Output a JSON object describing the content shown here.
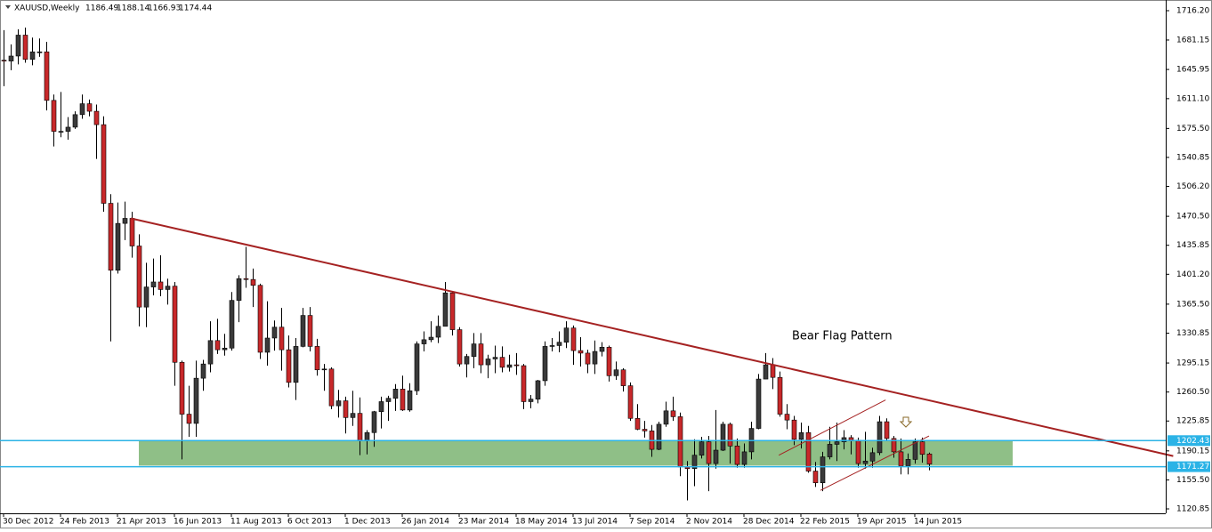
{
  "chart_data": {
    "type": "candlestick",
    "symbol": "XAUUSD,Weekly",
    "annotation": "Bear Flag Pattern",
    "bull_color": "#3a3a3a",
    "bear_color": "#c8282a",
    "categories": [
      "30 Dec 2012",
      null,
      null,
      null,
      null,
      null,
      null,
      null,
      "24 Feb 2013",
      null,
      null,
      null,
      null,
      null,
      null,
      null,
      "21 Apr 2013",
      null,
      null,
      null,
      null,
      null,
      null,
      null,
      "16 Jun 2013",
      null,
      null,
      null,
      null,
      null,
      null,
      null,
      "11 Aug 2013",
      null,
      null,
      null,
      null,
      null,
      null,
      null,
      "6 Oct 2013",
      null,
      null,
      null,
      null,
      null,
      null,
      null,
      "1 Dec 2013",
      null,
      null,
      null,
      null,
      null,
      null,
      null,
      "26 Jan 2014",
      null,
      null,
      null,
      null,
      null,
      null,
      null,
      "23 Mar 2014",
      null,
      null,
      null,
      null,
      null,
      null,
      null,
      "18 May 2014",
      null,
      null,
      null,
      null,
      null,
      null,
      null,
      "13 Jul 2014",
      null,
      null,
      null,
      null,
      null,
      null,
      null,
      "7 Sep 2014",
      null,
      null,
      null,
      null,
      null,
      null,
      null,
      "2 Nov 2014",
      null,
      null,
      null,
      null,
      null,
      null,
      null,
      "28 Dec 2014",
      null,
      null,
      null,
      null,
      null,
      null,
      null,
      "22 Feb 2015",
      null,
      null,
      null,
      null,
      null,
      null,
      null,
      "19 Apr 2015",
      null,
      null,
      null,
      null,
      null,
      null,
      null,
      "14 Jun 2015",
      null,
      null
    ],
    "ohlc": [
      [
        1657,
        1693,
        1626,
        1656
      ],
      [
        1656,
        1676,
        1645,
        1662
      ],
      [
        1662,
        1694,
        1652,
        1687
      ],
      [
        1687,
        1696,
        1654,
        1658
      ],
      [
        1658,
        1684,
        1651,
        1667
      ],
      [
        1667,
        1683,
        1661,
        1667
      ],
      [
        1667,
        1679,
        1597,
        1609
      ],
      [
        1609,
        1616,
        1554,
        1572
      ],
      [
        1572,
        1619,
        1565,
        1572
      ],
      [
        1572,
        1589,
        1562,
        1577
      ],
      [
        1577,
        1596,
        1575,
        1592
      ],
      [
        1592,
        1616,
        1587,
        1605
      ],
      [
        1605,
        1610,
        1590,
        1596
      ],
      [
        1596,
        1604,
        1539,
        1580
      ],
      [
        1580,
        1590,
        1476,
        1486
      ],
      [
        1486,
        1497,
        1321,
        1406
      ],
      [
        1406,
        1487,
        1402,
        1462
      ],
      [
        1462,
        1488,
        1442,
        1468
      ],
      [
        1468,
        1476,
        1421,
        1435
      ],
      [
        1435,
        1449,
        1339,
        1362
      ],
      [
        1362,
        1415,
        1338,
        1386
      ],
      [
        1386,
        1420,
        1376,
        1392
      ],
      [
        1392,
        1424,
        1375,
        1383
      ],
      [
        1383,
        1396,
        1365,
        1387
      ],
      [
        1387,
        1392,
        1268,
        1296
      ],
      [
        1296,
        1298,
        1180,
        1234
      ],
      [
        1234,
        1268,
        1207,
        1223
      ],
      [
        1223,
        1298,
        1207,
        1277
      ],
      [
        1277,
        1299,
        1262,
        1294
      ],
      [
        1294,
        1345,
        1284,
        1322
      ],
      [
        1322,
        1348,
        1306,
        1311
      ],
      [
        1311,
        1330,
        1304,
        1313
      ],
      [
        1313,
        1380,
        1310,
        1370
      ],
      [
        1370,
        1400,
        1344,
        1396
      ],
      [
        1396,
        1434,
        1385,
        1395
      ],
      [
        1395,
        1408,
        1362,
        1388
      ],
      [
        1388,
        1390,
        1300,
        1308
      ],
      [
        1308,
        1369,
        1292,
        1325
      ],
      [
        1325,
        1346,
        1310,
        1338
      ],
      [
        1338,
        1361,
        1286,
        1311
      ],
      [
        1311,
        1328,
        1266,
        1272
      ],
      [
        1272,
        1325,
        1251,
        1315
      ],
      [
        1315,
        1361,
        1314,
        1352
      ],
      [
        1352,
        1362,
        1309,
        1315
      ],
      [
        1315,
        1324,
        1280,
        1287
      ],
      [
        1287,
        1294,
        1262,
        1288
      ],
      [
        1288,
        1290,
        1240,
        1244
      ],
      [
        1244,
        1263,
        1230,
        1250
      ],
      [
        1250,
        1255,
        1211,
        1230
      ],
      [
        1230,
        1262,
        1220,
        1235
      ],
      [
        1235,
        1254,
        1185,
        1203
      ],
      [
        1203,
        1215,
        1186,
        1212
      ],
      [
        1212,
        1238,
        1195,
        1237
      ],
      [
        1237,
        1255,
        1217,
        1249
      ],
      [
        1249,
        1256,
        1226,
        1253
      ],
      [
        1253,
        1270,
        1238,
        1264
      ],
      [
        1264,
        1280,
        1238,
        1239
      ],
      [
        1239,
        1271,
        1237,
        1262
      ],
      [
        1262,
        1321,
        1257,
        1318
      ],
      [
        1318,
        1333,
        1309,
        1323
      ],
      [
        1323,
        1345,
        1320,
        1326
      ],
      [
        1326,
        1352,
        1319,
        1339
      ],
      [
        1339,
        1392,
        1339,
        1379
      ],
      [
        1379,
        1381,
        1328,
        1335
      ],
      [
        1335,
        1338,
        1291,
        1294
      ],
      [
        1294,
        1306,
        1278,
        1303
      ],
      [
        1303,
        1331,
        1289,
        1318
      ],
      [
        1318,
        1331,
        1283,
        1293
      ],
      [
        1293,
        1305,
        1277,
        1300
      ],
      [
        1300,
        1316,
        1283,
        1302
      ],
      [
        1302,
        1315,
        1284,
        1290
      ],
      [
        1290,
        1305,
        1285,
        1293
      ],
      [
        1293,
        1307,
        1281,
        1292
      ],
      [
        1292,
        1294,
        1240,
        1249
      ],
      [
        1249,
        1257,
        1241,
        1252
      ],
      [
        1252,
        1275,
        1247,
        1274
      ],
      [
        1274,
        1321,
        1268,
        1315
      ],
      [
        1315,
        1325,
        1309,
        1316
      ],
      [
        1316,
        1333,
        1308,
        1320
      ],
      [
        1320,
        1345,
        1313,
        1337
      ],
      [
        1337,
        1340,
        1293,
        1310
      ],
      [
        1310,
        1326,
        1291,
        1307
      ],
      [
        1307,
        1311,
        1283,
        1294
      ],
      [
        1294,
        1322,
        1282,
        1309
      ],
      [
        1309,
        1320,
        1303,
        1314
      ],
      [
        1314,
        1316,
        1273,
        1280
      ],
      [
        1280,
        1297,
        1275,
        1287
      ],
      [
        1287,
        1289,
        1261,
        1268
      ],
      [
        1268,
        1272,
        1226,
        1229
      ],
      [
        1229,
        1246,
        1215,
        1216
      ],
      [
        1216,
        1226,
        1206,
        1214
      ],
      [
        1214,
        1221,
        1183,
        1192
      ],
      [
        1192,
        1225,
        1191,
        1222
      ],
      [
        1222,
        1249,
        1219,
        1238
      ],
      [
        1238,
        1255,
        1226,
        1231
      ],
      [
        1231,
        1236,
        1160,
        1171
      ],
      [
        1171,
        1178,
        1131,
        1169
      ],
      [
        1169,
        1204,
        1148,
        1185
      ],
      [
        1185,
        1207,
        1181,
        1201
      ],
      [
        1201,
        1208,
        1142,
        1175
      ],
      [
        1175,
        1239,
        1169,
        1191
      ],
      [
        1191,
        1225,
        1190,
        1222
      ],
      [
        1222,
        1224,
        1175,
        1196
      ],
      [
        1196,
        1205,
        1170,
        1174
      ],
      [
        1174,
        1199,
        1170,
        1189
      ],
      [
        1189,
        1225,
        1180,
        1217
      ],
      [
        1217,
        1282,
        1216,
        1276
      ],
      [
        1276,
        1307,
        1276,
        1293
      ],
      [
        1293,
        1301,
        1264,
        1278
      ],
      [
        1278,
        1285,
        1231,
        1234
      ],
      [
        1234,
        1246,
        1216,
        1227
      ],
      [
        1227,
        1232,
        1197,
        1204
      ],
      [
        1204,
        1224,
        1193,
        1212
      ],
      [
        1212,
        1220,
        1164,
        1166
      ],
      [
        1166,
        1177,
        1147,
        1152
      ],
      [
        1152,
        1189,
        1142,
        1183
      ],
      [
        1183,
        1219,
        1180,
        1198
      ],
      [
        1198,
        1224,
        1178,
        1201
      ],
      [
        1201,
        1215,
        1192,
        1206
      ],
      [
        1206,
        1209,
        1186,
        1203
      ],
      [
        1203,
        1206,
        1170,
        1175
      ],
      [
        1175,
        1213,
        1169,
        1178
      ],
      [
        1178,
        1194,
        1170,
        1188
      ],
      [
        1188,
        1232,
        1185,
        1225
      ],
      [
        1225,
        1229,
        1202,
        1205
      ],
      [
        1205,
        1208,
        1182,
        1189
      ],
      [
        1189,
        1205,
        1162,
        1172
      ],
      [
        1172,
        1187,
        1162,
        1180
      ],
      [
        1180,
        1205,
        1175,
        1201
      ],
      [
        1201,
        1206,
        1176,
        1186
      ],
      [
        1186.49,
        1188.14,
        1166.93,
        1174.44
      ]
    ],
    "xlim": [
      -0.5,
      163.25
    ],
    "ylim": [
      1115.55,
      1728.96
    ],
    "yticks": [
      {
        "value": 1716.2,
        "label": "1716.20"
      },
      1681.15,
      {
        "value": 1645.95,
        "label": "1645.95"
      },
      {
        "value": 1611.1,
        "label": "1611.10"
      },
      {
        "value": 1575.5,
        "label": "1575.50"
      },
      1540.85,
      {
        "value": 1506.2,
        "label": "1506.20"
      },
      {
        "value": 1470.5,
        "label": "1470.50"
      },
      1435.85,
      {
        "value": 1401.2,
        "label": "1401.20"
      },
      {
        "value": 1365.5,
        "label": "1365.50"
      },
      1330.85,
      1295.15,
      {
        "value": 1260.5,
        "label": "1260.50"
      },
      1225.85,
      1190.15,
      {
        "value": 1155.5,
        "label": "1155.50"
      },
      1120.85
    ],
    "hlines": [
      1202.43,
      1171.27
    ],
    "hline_color": "#2bb3e6",
    "zone": {
      "x": [
        19,
        141.75
      ],
      "y": [
        1202.43,
        1172.6
      ],
      "color": "#8fbf87"
    },
    "trendlines": [
      {
        "x": [
          17.9,
          164.3
        ],
        "y": [
          1468,
          1184
        ],
        "color": "#a52222"
      },
      {
        "x": [
          108.9,
          123.9
        ],
        "y": [
          1185,
          1251
        ],
        "color": "#a52222"
      },
      {
        "x": [
          114.75,
          130
        ],
        "y": [
          1143,
          1208
        ],
        "color": "#a52222"
      }
    ]
  }
}
